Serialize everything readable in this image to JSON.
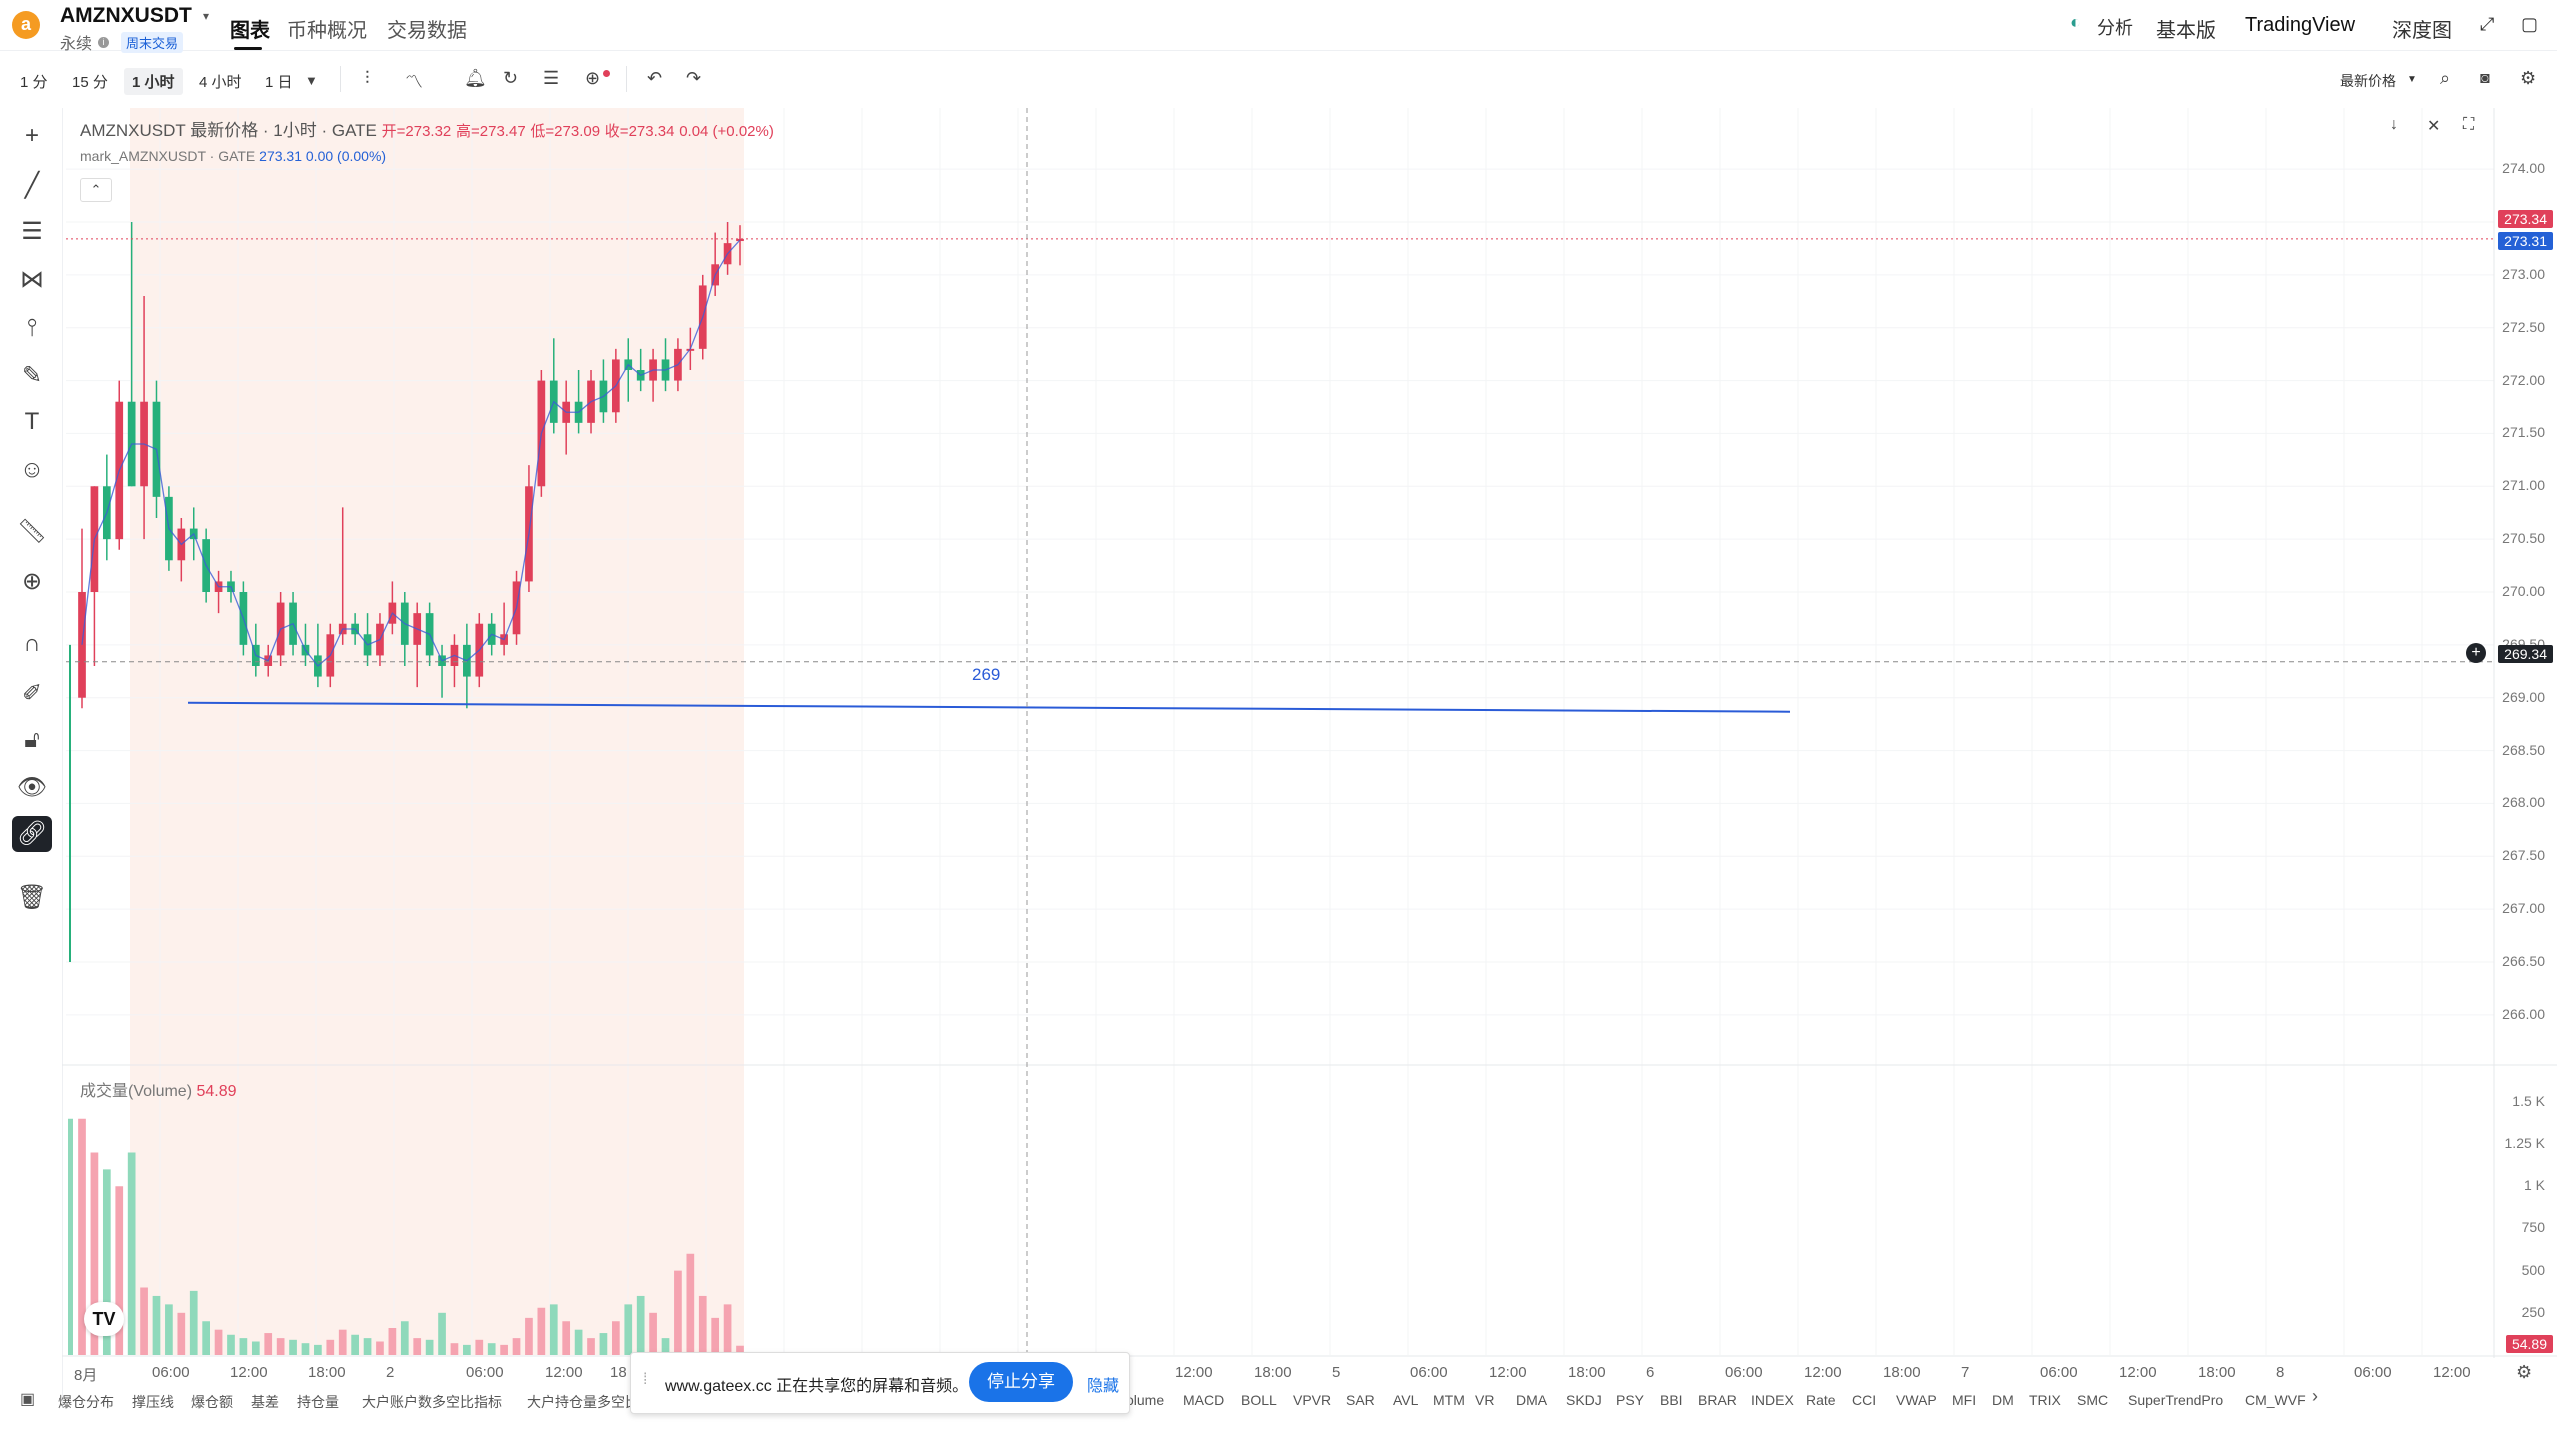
{
  "header": {
    "logo_letter": "a",
    "symbol": "AMZNXUSDT",
    "contract_type": "永续",
    "badge": "周末交易",
    "tabs": [
      {
        "label": "图表",
        "active": true
      },
      {
        "label": "币种概况",
        "active": false
      },
      {
        "label": "交易数据",
        "active": false
      }
    ],
    "right_menu": {
      "analysis": "分析",
      "basic": "基本版",
      "tradingview": "TradingView",
      "depth": "深度图"
    }
  },
  "toolbar": {
    "timeframes": [
      {
        "label": "1 分",
        "active": false
      },
      {
        "label": "15 分",
        "active": false
      },
      {
        "label": "1 小时",
        "active": true
      },
      {
        "label": "4 小时",
        "active": false
      },
      {
        "label": "1 日",
        "active": false
      }
    ],
    "price_type": "最新价格"
  },
  "legend": {
    "title": "AMZNXUSDT 最新价格 · 1小时 · GATE",
    "open_label": "开=",
    "open": "273.32",
    "high_label": "高=",
    "high": "273.47",
    "low_label": "低=",
    "low": "273.09",
    "close_label": "收=",
    "close": "273.34",
    "change": "0.04 (+0.02%)",
    "mark_title": "mark_AMZNXUSDT · GATE",
    "mark_value": "273.31",
    "mark_change": "0.00 (0.00%)"
  },
  "drawing": {
    "line_label": "269"
  },
  "volume": {
    "label": "成交量(Volume)",
    "value": "54.89"
  },
  "price_axis": [
    "274.00",
    "273.50",
    "273.00",
    "272.50",
    "272.00",
    "271.50",
    "271.00",
    "270.50",
    "270.00",
    "269.50",
    "269.00",
    "268.50",
    "268.00",
    "267.50",
    "267.00",
    "266.50",
    "266.00"
  ],
  "price_tags": {
    "last": "273.34",
    "mark": "273.31",
    "crosshair": "269.34",
    "volume": "54.89"
  },
  "volume_axis": [
    "1.5 K",
    "1.25 K",
    "1 K",
    "750",
    "500",
    "250"
  ],
  "time_axis": [
    "8月",
    "06:00",
    "12:00",
    "18:00",
    "2",
    "06:00",
    "12:00",
    "18",
    "12:00",
    "18:00",
    "5",
    "06:00",
    "12:00",
    "18:00",
    "6",
    "06:00",
    "12:00",
    "18:00",
    "7",
    "06:00",
    "12:00",
    "18:00",
    "8",
    "06:00",
    "12:00"
  ],
  "indicators": [
    "爆仓分布",
    "撑压线",
    "爆仓额",
    "基差",
    "持仓量",
    "大户账户数多空比指标",
    "大户持仓量多空比",
    "olume",
    "MACD",
    "BOLL",
    "VPVR",
    "SAR",
    "AVL",
    "MTM",
    "VR",
    "DMA",
    "SKDJ",
    "PSY",
    "BBI",
    "BRAR",
    "INDEX",
    "Rate",
    "CCI",
    "VWAP",
    "MFI",
    "DM",
    "TRIX",
    "SMC",
    "SuperTrendPro",
    "CM_WVF"
  ],
  "share_bar": {
    "message": "www.gateex.cc 正在共享您的屏幕和音频。",
    "stop_label": "停止分享",
    "hide_label": "隐藏"
  },
  "tv_logo": "TV",
  "colors": {
    "up": "#e0405a",
    "down": "#26b07b",
    "line": "#2a5bd7",
    "shade": "#fdf1ec"
  },
  "chart_data": {
    "type": "candlestick",
    "title": "AMZNXUSDT 最新价格 · 1小时 · GATE",
    "ylim": [
      265.8,
      274.2
    ],
    "candles": [
      {
        "o": 269.0,
        "h": 270.6,
        "l": 268.9,
        "c": 270.0
      },
      {
        "o": 270.0,
        "h": 271.0,
        "l": 269.3,
        "c": 271.0
      },
      {
        "o": 271.0,
        "h": 271.3,
        "l": 270.3,
        "c": 270.5
      },
      {
        "o": 270.5,
        "h": 272.0,
        "l": 270.4,
        "c": 271.8
      },
      {
        "o": 271.8,
        "h": 273.5,
        "l": 271.0,
        "c": 271.0
      },
      {
        "o": 271.0,
        "h": 272.8,
        "l": 270.5,
        "c": 271.8
      },
      {
        "o": 271.8,
        "h": 272.0,
        "l": 270.7,
        "c": 270.9
      },
      {
        "o": 270.9,
        "h": 271.0,
        "l": 270.2,
        "c": 270.3
      },
      {
        "o": 270.3,
        "h": 270.7,
        "l": 270.1,
        "c": 270.6
      },
      {
        "o": 270.6,
        "h": 270.8,
        "l": 270.3,
        "c": 270.5
      },
      {
        "o": 270.5,
        "h": 270.6,
        "l": 269.9,
        "c": 270.0
      },
      {
        "o": 270.0,
        "h": 270.2,
        "l": 269.8,
        "c": 270.1
      },
      {
        "o": 270.1,
        "h": 270.2,
        "l": 269.9,
        "c": 270.0
      },
      {
        "o": 270.0,
        "h": 270.1,
        "l": 269.4,
        "c": 269.5
      },
      {
        "o": 269.5,
        "h": 269.7,
        "l": 269.2,
        "c": 269.3
      },
      {
        "o": 269.3,
        "h": 269.5,
        "l": 269.2,
        "c": 269.4
      },
      {
        "o": 269.4,
        "h": 270.0,
        "l": 269.3,
        "c": 269.9
      },
      {
        "o": 269.9,
        "h": 270.0,
        "l": 269.4,
        "c": 269.5
      },
      {
        "o": 269.5,
        "h": 269.7,
        "l": 269.3,
        "c": 269.4
      },
      {
        "o": 269.4,
        "h": 269.7,
        "l": 269.1,
        "c": 269.2
      },
      {
        "o": 269.2,
        "h": 269.7,
        "l": 269.1,
        "c": 269.6
      },
      {
        "o": 269.6,
        "h": 270.8,
        "l": 269.5,
        "c": 269.7
      },
      {
        "o": 269.7,
        "h": 269.8,
        "l": 269.5,
        "c": 269.6
      },
      {
        "o": 269.6,
        "h": 269.8,
        "l": 269.3,
        "c": 269.4
      },
      {
        "o": 269.4,
        "h": 269.8,
        "l": 269.3,
        "c": 269.7
      },
      {
        "o": 269.7,
        "h": 270.1,
        "l": 269.6,
        "c": 269.9
      },
      {
        "o": 269.9,
        "h": 270.0,
        "l": 269.3,
        "c": 269.5
      },
      {
        "o": 269.5,
        "h": 269.9,
        "l": 269.1,
        "c": 269.8
      },
      {
        "o": 269.8,
        "h": 269.9,
        "l": 269.3,
        "c": 269.4
      },
      {
        "o": 269.4,
        "h": 269.5,
        "l": 269.0,
        "c": 269.3
      },
      {
        "o": 269.3,
        "h": 269.6,
        "l": 269.1,
        "c": 269.5
      },
      {
        "o": 269.5,
        "h": 269.7,
        "l": 268.9,
        "c": 269.2
      },
      {
        "o": 269.2,
        "h": 269.8,
        "l": 269.1,
        "c": 269.7
      },
      {
        "o": 269.7,
        "h": 269.8,
        "l": 269.4,
        "c": 269.5
      },
      {
        "o": 269.5,
        "h": 269.9,
        "l": 269.4,
        "c": 269.6
      },
      {
        "o": 269.6,
        "h": 270.2,
        "l": 269.5,
        "c": 270.1
      },
      {
        "o": 270.1,
        "h": 271.2,
        "l": 270.0,
        "c": 271.0
      },
      {
        "o": 271.0,
        "h": 272.1,
        "l": 270.9,
        "c": 272.0
      },
      {
        "o": 272.0,
        "h": 272.4,
        "l": 271.5,
        "c": 271.6
      },
      {
        "o": 271.6,
        "h": 272.0,
        "l": 271.3,
        "c": 271.8
      },
      {
        "o": 271.8,
        "h": 272.1,
        "l": 271.5,
        "c": 271.6
      },
      {
        "o": 271.6,
        "h": 272.1,
        "l": 271.5,
        "c": 272.0
      },
      {
        "o": 272.0,
        "h": 272.2,
        "l": 271.6,
        "c": 271.7
      },
      {
        "o": 271.7,
        "h": 272.3,
        "l": 271.6,
        "c": 272.2
      },
      {
        "o": 272.2,
        "h": 272.4,
        "l": 271.8,
        "c": 272.1
      },
      {
        "o": 272.1,
        "h": 272.3,
        "l": 271.9,
        "c": 272.0
      },
      {
        "o": 272.0,
        "h": 272.3,
        "l": 271.8,
        "c": 272.2
      },
      {
        "o": 272.2,
        "h": 272.4,
        "l": 271.9,
        "c": 272.0
      },
      {
        "o": 272.0,
        "h": 272.4,
        "l": 271.9,
        "c": 272.3
      },
      {
        "o": 272.3,
        "h": 272.5,
        "l": 272.1,
        "c": 272.3
      },
      {
        "o": 272.3,
        "h": 273.0,
        "l": 272.2,
        "c": 272.9
      },
      {
        "o": 272.9,
        "h": 273.4,
        "l": 272.8,
        "c": 273.1
      },
      {
        "o": 273.1,
        "h": 273.5,
        "l": 273.0,
        "c": 273.3
      },
      {
        "o": 273.32,
        "h": 273.47,
        "l": 273.09,
        "c": 273.34
      }
    ],
    "volume": [
      1400,
      1200,
      1100,
      1000,
      1200,
      400,
      350,
      300,
      250,
      380,
      200,
      150,
      120,
      100,
      80,
      130,
      100,
      90,
      70,
      60,
      90,
      150,
      120,
      100,
      80,
      160,
      200,
      100,
      90,
      250,
      70,
      60,
      90,
      70,
      60,
      100,
      220,
      280,
      300,
      200,
      150,
      100,
      130,
      200,
      300,
      350,
      250,
      100,
      500,
      600,
      350,
      220,
      300,
      54.89
    ],
    "volume_ylim": [
      0,
      1600
    ],
    "horizontal_line": 269.0
  }
}
